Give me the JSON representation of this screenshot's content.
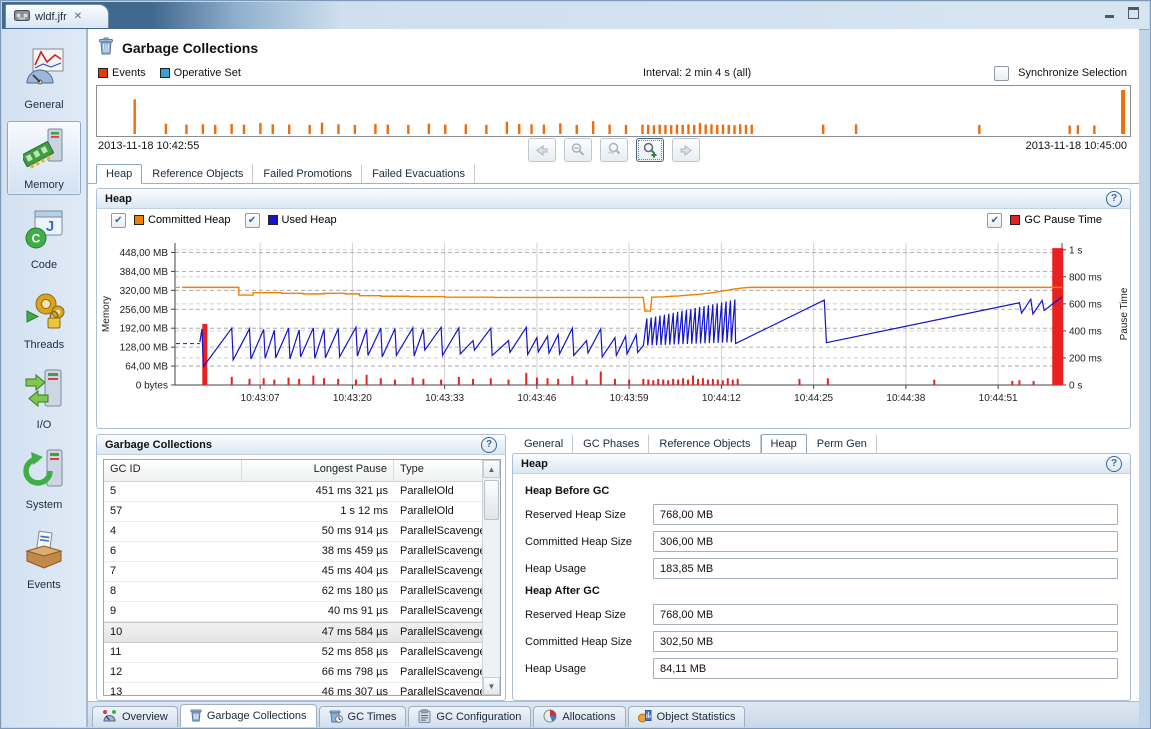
{
  "icons": {
    "help": "?",
    "check": "✔",
    "close": "✕"
  },
  "window": {
    "tab_title": "wldf.jfr"
  },
  "page": {
    "title": "Garbage Collections"
  },
  "sidebar": {
    "items": [
      {
        "label": "General",
        "icon": "general-icon",
        "selected": false
      },
      {
        "label": "Memory",
        "icon": "memory-icon",
        "selected": true
      },
      {
        "label": "Code",
        "icon": "code-icon",
        "selected": false
      },
      {
        "label": "Threads",
        "icon": "threads-icon",
        "selected": false
      },
      {
        "label": "I/O",
        "icon": "io-icon",
        "selected": false
      },
      {
        "label": "System",
        "icon": "system-icon",
        "selected": false
      },
      {
        "label": "Events",
        "icon": "events-icon",
        "selected": false
      }
    ]
  },
  "timeline": {
    "legend": [
      {
        "label": "Events",
        "color": "#e8380d"
      },
      {
        "label": "Operative Set",
        "color": "#3aa0dc"
      }
    ],
    "interval_label": "Interval: 2 min 4 s (all)",
    "sync_label": "Synchronize Selection",
    "sync_checked": false,
    "start_date": "2013-11-18 10:42:55",
    "end_date": "2013-11-18 10:45:00"
  },
  "main_tabs": {
    "items": [
      "Heap",
      "Reference Objects",
      "Failed Promotions",
      "Failed Evacuations"
    ],
    "active": 0
  },
  "heap_group": {
    "title": "Heap",
    "legend": [
      {
        "label": "Committed Heap",
        "color": "#f08000",
        "checked": true
      },
      {
        "label": "Used Heap",
        "color": "#1414cc",
        "checked": true
      }
    ],
    "legend_right": {
      "label": "GC Pause Time",
      "color": "#e82020",
      "checked": true
    }
  },
  "chart_data": {
    "type": "line",
    "title": "Heap",
    "x": {
      "start": "10:42:55",
      "end": "10:45:00",
      "duration_s": 125,
      "tick_seconds": [
        12,
        25,
        38,
        51,
        64,
        77,
        90,
        103,
        116
      ],
      "tick_labels": [
        "10:43:07",
        "10:43:20",
        "10:43:33",
        "10:43:46",
        "10:43:59",
        "10:44:12",
        "10:44:25",
        "10:44:38",
        "10:44:51"
      ]
    },
    "y_memory": {
      "label": "Memory",
      "max_mb": 480,
      "tick_values_mb": [
        448,
        384,
        320,
        256,
        192,
        128,
        64,
        0
      ],
      "tick_labels": [
        "448,00 MB",
        "384,00 MB",
        "320,00 MB",
        "256,00 MB",
        "192,00 MB",
        "128,00 MB",
        "64,00 MB",
        "0 bytes"
      ]
    },
    "y_pause": {
      "label": "Pause Time",
      "max_s": 1.05,
      "tick_values_s": [
        1,
        0.8,
        0.6,
        0.4,
        0.2,
        0
      ],
      "tick_labels": [
        "1 s",
        "800 ms",
        "600 ms",
        "400 ms",
        "200 ms",
        "0 s"
      ]
    },
    "start_markers": [
      {
        "series": "Committed Heap",
        "mb": 330,
        "to_s": 1
      },
      {
        "series": "Used Heap",
        "mb": 140,
        "to_s": 3.5
      }
    ],
    "series": [
      {
        "name": "Committed Heap",
        "color": "#f08000",
        "kind": "line",
        "unit": "MB",
        "points": [
          [
            1,
            330
          ],
          [
            9,
            330
          ],
          [
            9,
            304
          ],
          [
            11,
            304
          ],
          [
            11,
            312
          ],
          [
            15,
            312
          ],
          [
            15,
            310
          ],
          [
            18,
            310
          ],
          [
            18,
            308
          ],
          [
            21,
            308
          ],
          [
            21,
            310
          ],
          [
            24,
            310
          ],
          [
            24,
            308
          ],
          [
            26,
            308
          ],
          [
            26,
            302
          ],
          [
            29,
            302
          ],
          [
            29,
            300
          ],
          [
            33,
            300
          ],
          [
            33,
            299
          ],
          [
            38,
            299
          ],
          [
            38,
            297
          ],
          [
            45,
            297
          ],
          [
            45,
            296
          ],
          [
            58,
            296
          ],
          [
            66,
            296
          ],
          [
            66.2,
            250
          ],
          [
            67,
            250
          ],
          [
            67.2,
            297
          ],
          [
            69,
            298
          ],
          [
            70,
            300
          ],
          [
            71,
            301
          ],
          [
            72,
            303
          ],
          [
            73,
            305
          ],
          [
            74,
            307
          ],
          [
            75,
            310
          ],
          [
            76,
            313
          ],
          [
            77,
            317
          ],
          [
            78,
            321
          ],
          [
            79,
            325
          ],
          [
            80,
            328
          ],
          [
            81,
            330
          ],
          [
            125,
            330
          ]
        ]
      },
      {
        "name": "Used Heap",
        "color": "#1414cc",
        "kind": "line",
        "unit": "MB",
        "segments": [
          {
            "kind": "pts",
            "pts": [
              [
                3.5,
                145
              ],
              [
                3.8,
                190
              ],
              [
                4,
                62
              ],
              [
                8,
                192
              ],
              [
                8.2,
                85
              ],
              [
                10.5,
                190
              ],
              [
                10.7,
                88
              ],
              [
                12.5,
                188
              ],
              [
                12.7,
                90
              ],
              [
                14,
                185
              ],
              [
                14.2,
                92
              ],
              [
                16,
                192
              ],
              [
                16.2,
                88
              ],
              [
                17.5,
                186
              ],
              [
                17.7,
                95
              ],
              [
                19.5,
                193
              ],
              [
                19.7,
                90
              ],
              [
                21,
                188
              ],
              [
                21.2,
                92
              ],
              [
                23,
                190
              ],
              [
                23.2,
                95
              ],
              [
                25.5,
                195
              ],
              [
                25.7,
                98
              ],
              [
                27,
                188
              ],
              [
                27.2,
                100
              ],
              [
                29,
                192
              ],
              [
                29.2,
                95
              ],
              [
                31,
                190
              ],
              [
                31.2,
                100
              ],
              [
                33.5,
                193
              ],
              [
                33.7,
                98
              ],
              [
                35,
                188
              ],
              [
                35.2,
                118
              ],
              [
                37.5,
                195
              ],
              [
                37.7,
                100
              ],
              [
                40,
                193
              ],
              [
                40.2,
                105
              ],
              [
                42,
                150
              ],
              [
                42.2,
                118
              ],
              [
                44.5,
                192
              ],
              [
                44.7,
                100
              ],
              [
                47,
                150
              ],
              [
                47.2,
                110
              ],
              [
                49.5,
                195
              ],
              [
                49.7,
                103
              ],
              [
                51,
                160
              ],
              [
                51.2,
                112
              ],
              [
                52.5,
                165
              ],
              [
                52.7,
                108
              ],
              [
                54,
                170
              ],
              [
                54.2,
                105
              ],
              [
                56,
                192
              ],
              [
                56.2,
                100
              ],
              [
                58,
                150
              ],
              [
                58.2,
                108
              ],
              [
                60,
                190
              ],
              [
                60.2,
                95
              ],
              [
                62,
                160
              ],
              [
                62.2,
                100
              ],
              [
                63.5,
                165
              ],
              [
                63.7,
                105
              ],
              [
                65,
                170
              ],
              [
                65.2,
                110
              ]
            ]
          },
          {
            "kind": "saw",
            "from": 66,
            "to": 79,
            "period": 0.62,
            "base": 133,
            "peak_start": 225,
            "peak_end": 292
          },
          {
            "kind": "pts",
            "pts": [
              [
                79,
                140
              ],
              [
                91.5,
                287
              ],
              [
                91.8,
                143
              ],
              [
                119,
                278
              ],
              [
                119.3,
                243
              ],
              [
                120.6,
                290
              ],
              [
                120.9,
                240
              ],
              [
                122.2,
                286
              ],
              [
                122.5,
                252
              ],
              [
                125,
                298
              ]
            ]
          }
        ]
      },
      {
        "name": "GC Pause Time",
        "color": "#e82020",
        "kind": "bars",
        "unit": "ms",
        "points": [
          [
            4.2,
            451
          ],
          [
            8,
            60
          ],
          [
            10.5,
            45
          ],
          [
            12.5,
            50
          ],
          [
            14,
            40
          ],
          [
            16,
            55
          ],
          [
            17.5,
            45
          ],
          [
            19.5,
            70
          ],
          [
            21,
            50
          ],
          [
            23,
            45
          ],
          [
            25.5,
            40
          ],
          [
            27,
            75
          ],
          [
            29,
            50
          ],
          [
            31,
            40
          ],
          [
            33.5,
            55
          ],
          [
            35,
            45
          ],
          [
            37.5,
            40
          ],
          [
            40,
            60
          ],
          [
            42,
            45
          ],
          [
            44.5,
            50
          ],
          [
            47,
            40
          ],
          [
            49.5,
            90
          ],
          [
            51,
            55
          ],
          [
            52.5,
            50
          ],
          [
            54,
            45
          ],
          [
            56,
            65
          ],
          [
            58,
            40
          ],
          [
            60,
            100
          ],
          [
            62,
            45
          ],
          [
            64,
            40
          ],
          [
            66,
            45
          ],
          [
            66.7,
            40
          ],
          [
            67.4,
            35
          ],
          [
            68.1,
            45
          ],
          [
            68.8,
            40
          ],
          [
            69.5,
            35
          ],
          [
            70.2,
            45
          ],
          [
            70.9,
            40
          ],
          [
            71.6,
            50
          ],
          [
            72.3,
            40
          ],
          [
            73,
            70
          ],
          [
            73.7,
            45
          ],
          [
            74.4,
            50
          ],
          [
            75.1,
            40
          ],
          [
            75.8,
            45
          ],
          [
            76.5,
            40
          ],
          [
            77.2,
            35
          ],
          [
            77.9,
            50
          ],
          [
            78.6,
            40
          ],
          [
            79.3,
            45
          ],
          [
            88,
            45
          ],
          [
            92,
            50
          ],
          [
            107,
            40
          ],
          [
            118,
            30
          ],
          [
            119,
            35
          ],
          [
            121,
            30
          ],
          [
            124.4,
            1012
          ]
        ]
      }
    ]
  },
  "gc_table": {
    "title": "Garbage Collections",
    "columns": [
      "GC ID",
      "Longest Pause",
      "Type"
    ],
    "selected_index": 7,
    "rows": [
      {
        "id": "5",
        "pause": "451 ms 321 µs",
        "type": "ParallelOld"
      },
      {
        "id": "57",
        "pause": "1 s 12 ms",
        "type": "ParallelOld"
      },
      {
        "id": "4",
        "pause": "50 ms 914 µs",
        "type": "ParallelScavenge"
      },
      {
        "id": "6",
        "pause": "38 ms 459 µs",
        "type": "ParallelScavenge"
      },
      {
        "id": "7",
        "pause": "45 ms 404 µs",
        "type": "ParallelScavenge"
      },
      {
        "id": "8",
        "pause": "62 ms 180 µs",
        "type": "ParallelScavenge"
      },
      {
        "id": "9",
        "pause": "40 ms 91 µs",
        "type": "ParallelScavenge"
      },
      {
        "id": "10",
        "pause": "47 ms 584 µs",
        "type": "ParallelScavenge"
      },
      {
        "id": "11",
        "pause": "52 ms 858 µs",
        "type": "ParallelScavenge"
      },
      {
        "id": "12",
        "pause": "66 ms 798 µs",
        "type": "ParallelScavenge"
      },
      {
        "id": "13",
        "pause": "46 ms 307 µs",
        "type": "ParallelScavenge"
      }
    ]
  },
  "detail": {
    "tabs": [
      "General",
      "GC Phases",
      "Reference Objects",
      "Heap",
      "Perm Gen"
    ],
    "active": 3,
    "title": "Heap",
    "groups": [
      {
        "title": "Heap Before GC",
        "fields": [
          {
            "label": "Reserved Heap Size",
            "value": "768,00 MB"
          },
          {
            "label": "Committed Heap Size",
            "value": "306,00 MB"
          },
          {
            "label": "Heap Usage",
            "value": "183,85 MB"
          }
        ]
      },
      {
        "title": "Heap After GC",
        "fields": [
          {
            "label": "Reserved Heap Size",
            "value": "768,00 MB"
          },
          {
            "label": "Committed Heap Size",
            "value": "302,50 MB"
          },
          {
            "label": "Heap Usage",
            "value": "84,11 MB"
          }
        ]
      }
    ]
  },
  "bottom_tabs": {
    "active": 1,
    "items": [
      {
        "label": "Overview",
        "icon": "overview-icon"
      },
      {
        "label": "Garbage Collections",
        "icon": "trash-icon"
      },
      {
        "label": "GC Times",
        "icon": "gc-times-icon"
      },
      {
        "label": "GC Configuration",
        "icon": "gc-config-icon"
      },
      {
        "label": "Allocations",
        "icon": "allocations-icon"
      },
      {
        "label": "Object Statistics",
        "icon": "object-stats-icon"
      }
    ]
  }
}
